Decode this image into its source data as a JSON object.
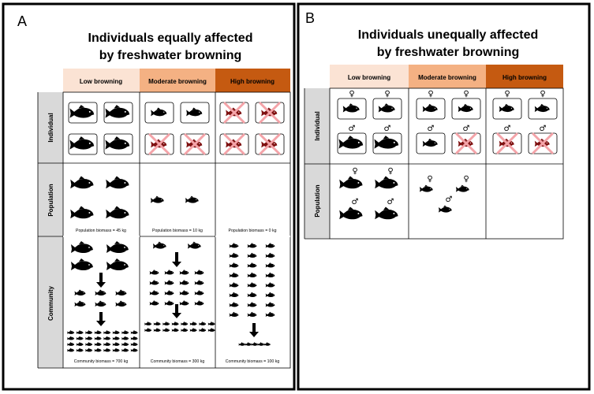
{
  "panel_a": {
    "letter": "A",
    "title_line1": "Individuals equally affected",
    "title_line2": "by freshwater browning",
    "columns": [
      "Low browning",
      "Moderate browning",
      "High browning"
    ],
    "rows": [
      "Individual",
      "Population",
      "Community"
    ],
    "population_biomass": [
      "Population biomass = 45 kg",
      "Population biomass = 10 kg",
      "Population biomass = 0 kg"
    ],
    "community_biomass": [
      "Community biomass = 700 kg",
      "Community biomass = 300 kg",
      "Community biomass = 100 kg"
    ]
  },
  "panel_b": {
    "letter": "B",
    "title_line1": "Individuals unequally affected",
    "title_line2": "by freshwater browning",
    "columns": [
      "Low browning",
      "Moderate browning",
      "High browning"
    ],
    "rows": [
      "Individual",
      "Population"
    ]
  },
  "symbols": {
    "female": "♀",
    "male": "♂"
  },
  "colors": {
    "low": "#fbe3d4",
    "moderate": "#f4b183",
    "high": "#c55a11",
    "side": "#d9d9d9",
    "dead_fish": "#7f1111",
    "cross": "#f4a3a8"
  }
}
